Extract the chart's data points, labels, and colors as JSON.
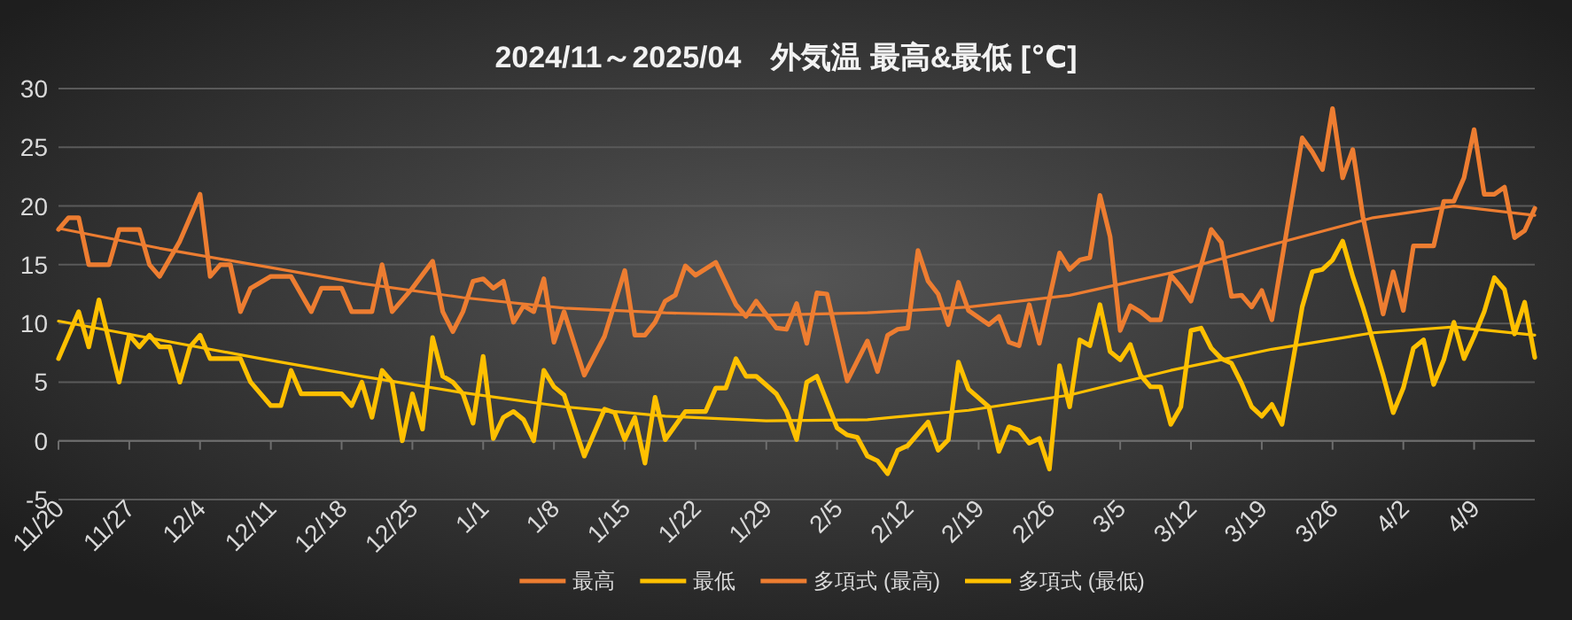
{
  "chart_data": {
    "type": "line",
    "title": "2024/11～2025/04　外気温 最高&最低 [℃]",
    "xlim": [
      "2024-11-20",
      "2025-04-15"
    ],
    "xticks": [
      {
        "value": "2024-11-20",
        "label": "11/20"
      },
      {
        "value": "2024-11-27",
        "label": "11/27"
      },
      {
        "value": "2024-12-04",
        "label": "12/4"
      },
      {
        "value": "2024-12-11",
        "label": "12/11"
      },
      {
        "value": "2024-12-18",
        "label": "12/18"
      },
      {
        "value": "2024-12-25",
        "label": "12/25"
      },
      {
        "value": "2025-01-01",
        "label": "1/1"
      },
      {
        "value": "2025-01-08",
        "label": "1/8"
      },
      {
        "value": "2025-01-15",
        "label": "1/15"
      },
      {
        "value": "2025-01-22",
        "label": "1/22"
      },
      {
        "value": "2025-01-29",
        "label": "1/29"
      },
      {
        "value": "2025-02-05",
        "label": "2/5"
      },
      {
        "value": "2025-02-12",
        "label": "2/12"
      },
      {
        "value": "2025-02-19",
        "label": "2/19"
      },
      {
        "value": "2025-02-26",
        "label": "2/26"
      },
      {
        "value": "2025-03-05",
        "label": "3/5"
      },
      {
        "value": "2025-03-12",
        "label": "3/12"
      },
      {
        "value": "2025-03-19",
        "label": "3/19"
      },
      {
        "value": "2025-03-26",
        "label": "3/26"
      },
      {
        "value": "2025-04-02",
        "label": "4/2"
      },
      {
        "value": "2025-04-09",
        "label": "4/9"
      }
    ],
    "ylim": [
      -5,
      30
    ],
    "yticks": [
      -5,
      0,
      5,
      10,
      15,
      20,
      25,
      30
    ],
    "grid": "y",
    "legend": "bottom",
    "marker": "none",
    "line_style": "solid",
    "series": [
      {
        "name": "最高",
        "color": "#ed7d31",
        "x": [
          "2024-11-20",
          "2024-11-21",
          "2024-11-22",
          "2024-11-23",
          "2024-11-25",
          "2024-11-26",
          "2024-11-28",
          "2024-11-29",
          "2024-11-30",
          "2024-12-02",
          "2024-12-04",
          "2024-12-05",
          "2024-12-06",
          "2024-12-07",
          "2024-12-08",
          "2024-12-09",
          "2024-12-11",
          "2024-12-13",
          "2024-12-15",
          "2024-12-16",
          "2024-12-18",
          "2024-12-19",
          "2024-12-21",
          "2024-12-22",
          "2024-12-23",
          "2024-12-25",
          "2024-12-27",
          "2024-12-28",
          "2024-12-29",
          "2024-12-30",
          "2024-12-31",
          "2025-01-01",
          "2025-01-02",
          "2025-01-03",
          "2025-01-04",
          "2025-01-05",
          "2025-01-06",
          "2025-01-07",
          "2025-01-08",
          "2025-01-09",
          "2025-01-11",
          "2025-01-13",
          "2025-01-15",
          "2025-01-16",
          "2025-01-17",
          "2025-01-18",
          "2025-01-19",
          "2025-01-20",
          "2025-01-21",
          "2025-01-22",
          "2025-01-24",
          "2025-01-26",
          "2025-01-27",
          "2025-01-28",
          "2025-01-30",
          "2025-01-31",
          "2025-02-01",
          "2025-02-02",
          "2025-02-03",
          "2025-02-04",
          "2025-02-06",
          "2025-02-08",
          "2025-02-09",
          "2025-02-10",
          "2025-02-11",
          "2025-02-12",
          "2025-02-13",
          "2025-02-14",
          "2025-02-15",
          "2025-02-16",
          "2025-02-17",
          "2025-02-18",
          "2025-02-20",
          "2025-02-21",
          "2025-02-22",
          "2025-02-23",
          "2025-02-24",
          "2025-02-25",
          "2025-02-27",
          "2025-02-28",
          "2025-03-01",
          "2025-03-02",
          "2025-03-03",
          "2025-03-04",
          "2025-03-05",
          "2025-03-06",
          "2025-03-07",
          "2025-03-08",
          "2025-03-09",
          "2025-03-10",
          "2025-03-11",
          "2025-03-12",
          "2025-03-14",
          "2025-03-15",
          "2025-03-16",
          "2025-03-17",
          "2025-03-18",
          "2025-03-19",
          "2025-03-20",
          "2025-03-23",
          "2025-03-24",
          "2025-03-25",
          "2025-03-26",
          "2025-03-27",
          "2025-03-28",
          "2025-03-29",
          "2025-03-31",
          "2025-04-01",
          "2025-04-02",
          "2025-04-03",
          "2025-04-05",
          "2025-04-06",
          "2025-04-07",
          "2025-04-08",
          "2025-04-09",
          "2025-04-10",
          "2025-04-11",
          "2025-04-12",
          "2025-04-13",
          "2025-04-14",
          "2025-04-15"
        ],
        "values": [
          18,
          19,
          19,
          15,
          15,
          18,
          18,
          15,
          14,
          17,
          21,
          14,
          15,
          15,
          11,
          13,
          14,
          14,
          11,
          13,
          13,
          11,
          11,
          15,
          11,
          13,
          15.3,
          11,
          9.3,
          11,
          13.6,
          13.8,
          13,
          13.6,
          10.1,
          11.5,
          11,
          13.8,
          8.4,
          11,
          5.6,
          8.9,
          14.5,
          9,
          9,
          10.1,
          11.9,
          12.4,
          14.9,
          14.1,
          15.2,
          11.6,
          10.6,
          11.9,
          9.6,
          9.5,
          11.7,
          8.3,
          12.6,
          12.5,
          5.1,
          8.5,
          5.9,
          9,
          9.5,
          9.6,
          16.2,
          13.6,
          12.5,
          9.9,
          13.5,
          11.1,
          9.9,
          10.6,
          8.4,
          8.1,
          11.6,
          8.3,
          16,
          14.6,
          15.4,
          15.6,
          20.9,
          17.4,
          9.4,
          11.5,
          11,
          10.3,
          10.3,
          14.1,
          13.1,
          11.9,
          18,
          16.9,
          12.3,
          12.4,
          11.4,
          12.8,
          10.3,
          25.8,
          24.6,
          23.1,
          28.3,
          22.4,
          24.8,
          19.1,
          10.8,
          14.4,
          11.1,
          16.6,
          16.6,
          20.4,
          20.4,
          22.4,
          26.5,
          21,
          21,
          21.6,
          17.3,
          17.9,
          19.8
        ]
      },
      {
        "name": "最低",
        "color": "#ffc000",
        "x": [
          "2024-11-20",
          "2024-11-22",
          "2024-11-23",
          "2024-11-24",
          "2024-11-26",
          "2024-11-27",
          "2024-11-28",
          "2024-11-29",
          "2024-11-30",
          "2024-12-01",
          "2024-12-02",
          "2024-12-03",
          "2024-12-04",
          "2024-12-05",
          "2024-12-08",
          "2024-12-09",
          "2024-12-11",
          "2024-12-12",
          "2024-12-13",
          "2024-12-14",
          "2024-12-18",
          "2024-12-19",
          "2024-12-20",
          "2024-12-21",
          "2024-12-22",
          "2024-12-23",
          "2024-12-24",
          "2024-12-25",
          "2024-12-26",
          "2024-12-27",
          "2024-12-28",
          "2024-12-29",
          "2024-12-30",
          "2024-12-31",
          "2025-01-01",
          "2025-01-02",
          "2025-01-03",
          "2025-01-04",
          "2025-01-05",
          "2025-01-06",
          "2025-01-07",
          "2025-01-08",
          "2025-01-09",
          "2025-01-11",
          "2025-01-13",
          "2025-01-14",
          "2025-01-15",
          "2025-01-16",
          "2025-01-17",
          "2025-01-18",
          "2025-01-19",
          "2025-01-21",
          "2025-01-23",
          "2025-01-24",
          "2025-01-25",
          "2025-01-26",
          "2025-01-27",
          "2025-01-28",
          "2025-01-30",
          "2025-01-31",
          "2025-02-01",
          "2025-02-02",
          "2025-02-03",
          "2025-02-05",
          "2025-02-06",
          "2025-02-07",
          "2025-02-08",
          "2025-02-09",
          "2025-02-10",
          "2025-02-11",
          "2025-02-12",
          "2025-02-14",
          "2025-02-15",
          "2025-02-16",
          "2025-02-17",
          "2025-02-18",
          "2025-02-20",
          "2025-02-21",
          "2025-02-22",
          "2025-02-23",
          "2025-02-24",
          "2025-02-25",
          "2025-02-26",
          "2025-02-27",
          "2025-02-28",
          "2025-03-01",
          "2025-03-02",
          "2025-03-03",
          "2025-03-04",
          "2025-03-05",
          "2025-03-06",
          "2025-03-07",
          "2025-03-08",
          "2025-03-09",
          "2025-03-10",
          "2025-03-11",
          "2025-03-12",
          "2025-03-13",
          "2025-03-14",
          "2025-03-15",
          "2025-03-16",
          "2025-03-17",
          "2025-03-18",
          "2025-03-19",
          "2025-03-20",
          "2025-03-21",
          "2025-03-23",
          "2025-03-24",
          "2025-03-25",
          "2025-03-26",
          "2025-03-27",
          "2025-03-28",
          "2025-03-29",
          "2025-03-31",
          "2025-04-01",
          "2025-04-02",
          "2025-04-03",
          "2025-04-04",
          "2025-04-05",
          "2025-04-06",
          "2025-04-07",
          "2025-04-08",
          "2025-04-09",
          "2025-04-10",
          "2025-04-11",
          "2025-04-12",
          "2025-04-13",
          "2025-04-14",
          "2025-04-15"
        ],
        "values": [
          7,
          11,
          8,
          12,
          5,
          9,
          8,
          9,
          8,
          8,
          5,
          8,
          9,
          7,
          7,
          5,
          3,
          3,
          6,
          4,
          4,
          3,
          5,
          2,
          6,
          5,
          0,
          4,
          1,
          8.8,
          5.5,
          5,
          4,
          1.5,
          7.2,
          0.2,
          2,
          2.5,
          1.8,
          0,
          6,
          4.6,
          3.9,
          -1.3,
          2.7,
          2.4,
          0.1,
          2,
          -1.9,
          3.7,
          0.1,
          2.5,
          2.5,
          4.5,
          4.5,
          7,
          5.5,
          5.5,
          4,
          2.5,
          0.1,
          5,
          5.5,
          1.1,
          0.5,
          0.3,
          -1.3,
          -1.7,
          -2.8,
          -0.8,
          -0.4,
          1.6,
          -0.8,
          0.1,
          6.7,
          4.4,
          2.9,
          -0.9,
          1.2,
          0.9,
          -0.2,
          0.2,
          -2.4,
          6.4,
          2.9,
          8.6,
          8.1,
          11.6,
          7.6,
          6.9,
          8.2,
          5.6,
          4.6,
          4.6,
          1.4,
          2.9,
          9.4,
          9.6,
          7.9,
          7,
          6.6,
          4.9,
          2.9,
          2.1,
          3.1,
          1.4,
          11.4,
          14.4,
          14.6,
          15.4,
          17,
          14,
          11.4,
          5.6,
          2.4,
          4.5,
          7.9,
          8.6,
          4.8,
          6.9,
          10.1,
          7,
          8.9,
          11,
          13.9,
          12.9,
          9.1,
          11.8,
          7.1
        ]
      },
      {
        "name": "多項式 (最高)",
        "color": "#ed7d31",
        "x": [
          "2024-11-20",
          "2024-11-30",
          "2024-12-10",
          "2024-12-20",
          "2024-12-30",
          "2025-01-09",
          "2025-01-19",
          "2025-01-29",
          "2025-02-08",
          "2025-02-18",
          "2025-02-28",
          "2025-03-10",
          "2025-03-20",
          "2025-03-30",
          "2025-04-07",
          "2025-04-15"
        ],
        "values": [
          18.1,
          16.4,
          14.9,
          13.4,
          12.2,
          11.3,
          10.9,
          10.7,
          10.9,
          11.4,
          12.4,
          14.3,
          16.7,
          19,
          20,
          19.2
        ]
      },
      {
        "name": "多項式 (最低)",
        "color": "#ffc000",
        "x": [
          "2024-11-20",
          "2024-11-30",
          "2024-12-10",
          "2024-12-20",
          "2024-12-30",
          "2025-01-09",
          "2025-01-19",
          "2025-01-29",
          "2025-02-08",
          "2025-02-18",
          "2025-02-28",
          "2025-03-10",
          "2025-03-20",
          "2025-03-30",
          "2025-04-07",
          "2025-04-15"
        ],
        "values": [
          10.2,
          8.6,
          7,
          5.5,
          4.1,
          2.9,
          2.1,
          1.7,
          1.8,
          2.6,
          3.9,
          6,
          7.8,
          9.2,
          9.7,
          9
        ]
      }
    ]
  }
}
